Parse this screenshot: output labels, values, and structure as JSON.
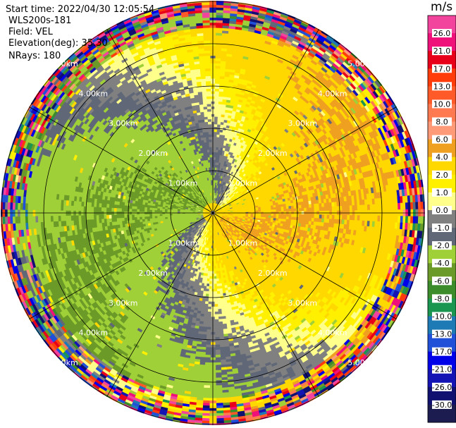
{
  "header": {
    "start_time": "Start time: 2022/04/30 12:05:54",
    "instrument": "WLS200s-181",
    "field": "Field: VEL",
    "elevation": "Elevation(deg): 35.30",
    "nrays": "NRays: 180"
  },
  "colorbar": {
    "unit": "m/s",
    "ticks": [
      "26.0",
      "21.0",
      "17.0",
      "13.0",
      "10.0",
      "8.0",
      "6.0",
      "4.0",
      "2.0",
      "1.0",
      "0.0",
      "-1.0",
      "-2.0",
      "-4.0",
      "-6.0",
      "-8.0",
      "-10.0",
      "-13.0",
      "-17.0",
      "-21.0",
      "-26.0",
      "-30.0"
    ],
    "colors": [
      "#f2439d",
      "#f0107a",
      "#e8001a",
      "#ff3c0a",
      "#ff5a28",
      "#ff7a50",
      "#ff9a78",
      "#f0a020",
      "#ffd800",
      "#fff000",
      "#ffff8c",
      "#808080",
      "#606878",
      "#a0d038",
      "#6c9a28",
      "#3c8c2c",
      "#1a9650",
      "#1e7ab4",
      "#2050d8",
      "#0000e8",
      "#1414b4",
      "#101070",
      "#1c1c50"
    ]
  },
  "chart_data": {
    "type": "heatmap",
    "plot_kind": "PPI polar scan",
    "field": "VEL",
    "units": "m/s",
    "range_rings_km": [
      1,
      2,
      3,
      4,
      5
    ],
    "ring_labels": [
      "1.00km",
      "2.00km",
      "3.00km",
      "4.00km",
      "5.00km"
    ],
    "spokes_deg": [
      0,
      30,
      60,
      90,
      120,
      150,
      180,
      210,
      240,
      270,
      300,
      330
    ],
    "max_range_km": 5.4,
    "vmin": -30,
    "vmax": 30,
    "nrays": 180,
    "pattern": "radial velocity: negative (green) toward west/north-west, positive (yellow) toward south-east, near-zero gray bands, noisy mixed colors beyond ~4.5 km"
  }
}
